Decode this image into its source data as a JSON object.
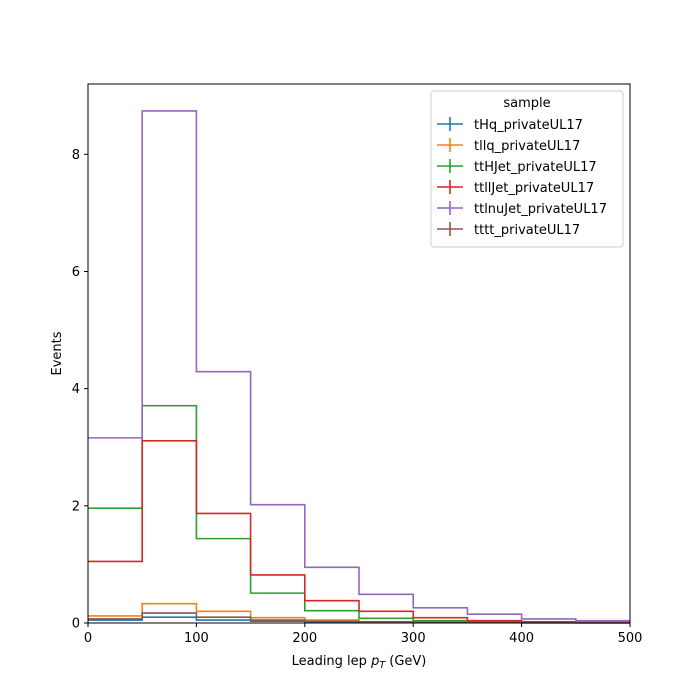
{
  "chart_data": {
    "type": "step-histogram",
    "xlabel_prefix": "Leading lep ",
    "xlabel_math_main": "p",
    "xlabel_math_sub": "T",
    "xlabel_suffix": " (GeV)",
    "ylabel": "Events",
    "xlim": [
      0,
      500
    ],
    "ylim": [
      0,
      9.2
    ],
    "xticks": [
      0,
      100,
      200,
      300,
      400,
      500
    ],
    "yticks": [
      0,
      2,
      4,
      6,
      8
    ],
    "bin_edges": [
      0,
      50,
      100,
      150,
      200,
      250,
      300,
      350,
      400,
      450,
      500
    ],
    "grid": false,
    "legend": {
      "title": "sample",
      "placement": "top-right"
    },
    "series": [
      {
        "name": "tHq_privateUL17",
        "color": "#1f77b4",
        "values": [
          0.05,
          0.1,
          0.05,
          0.03,
          0.02,
          0.01,
          0.01,
          0.005,
          0.003,
          0.002
        ]
      },
      {
        "name": "tllq_privateUL17",
        "color": "#ff7f0e",
        "values": [
          0.12,
          0.33,
          0.2,
          0.09,
          0.05,
          0.02,
          0.01,
          0.005,
          0.003,
          0.002
        ]
      },
      {
        "name": "ttHJet_privateUL17",
        "color": "#2ca02c",
        "values": [
          1.96,
          3.71,
          1.44,
          0.51,
          0.21,
          0.08,
          0.04,
          0.02,
          0.01,
          0.005
        ]
      },
      {
        "name": "ttllJet_privateUL17",
        "color": "#d62728",
        "values": [
          1.05,
          3.11,
          1.87,
          0.82,
          0.38,
          0.2,
          0.09,
          0.04,
          0.02,
          0.01
        ]
      },
      {
        "name": "ttlnuJet_privateUL17",
        "color": "#9467bd",
        "values": [
          3.16,
          8.74,
          4.29,
          2.02,
          0.95,
          0.49,
          0.26,
          0.15,
          0.07,
          0.04
        ]
      },
      {
        "name": "tttt_privateUL17",
        "color": "#8c564b",
        "values": [
          0.07,
          0.17,
          0.1,
          0.05,
          0.03,
          0.02,
          0.01,
          0.01,
          0.005,
          0.003
        ]
      }
    ]
  }
}
